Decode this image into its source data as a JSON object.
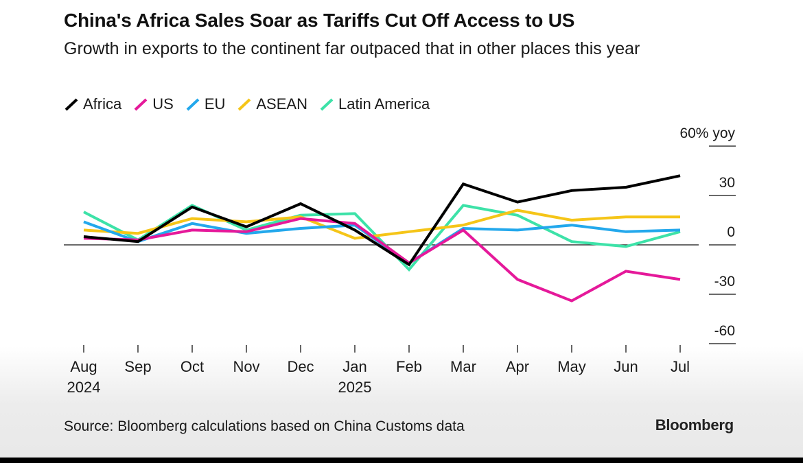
{
  "title": "China's Africa Sales Soar as Tariffs Cut Off Access to US",
  "subtitle": "Growth in exports to the continent far outpaced that in other places this year",
  "source": "Source: Bloomberg calculations based on China Customs data",
  "brand": "Bloomberg",
  "chart_data": {
    "type": "line",
    "categories": [
      "Aug 2024",
      "Sep",
      "Oct",
      "Nov",
      "Dec",
      "Jan 2025",
      "Feb",
      "Mar",
      "Apr",
      "May",
      "Jun",
      "Jul"
    ],
    "x_tick_labels": [
      {
        "line1": "Aug",
        "line2": "2024"
      },
      {
        "line1": "Sep",
        "line2": ""
      },
      {
        "line1": "Oct",
        "line2": ""
      },
      {
        "line1": "Nov",
        "line2": ""
      },
      {
        "line1": "Dec",
        "line2": ""
      },
      {
        "line1": "Jan",
        "line2": "2025"
      },
      {
        "line1": "Feb",
        "line2": ""
      },
      {
        "line1": "Mar",
        "line2": ""
      },
      {
        "line1": "Apr",
        "line2": ""
      },
      {
        "line1": "May",
        "line2": ""
      },
      {
        "line1": "Jun",
        "line2": ""
      },
      {
        "line1": "Jul",
        "line2": ""
      }
    ],
    "y_ticks": [
      {
        "value": 60,
        "label": "60% yoy"
      },
      {
        "value": 30,
        "label": "30"
      },
      {
        "value": 0,
        "label": "0"
      },
      {
        "value": -30,
        "label": "-30"
      },
      {
        "value": -60,
        "label": "-60"
      }
    ],
    "ylim": [
      -60,
      60
    ],
    "zero_line": true,
    "legend_position": "top-left",
    "series": [
      {
        "name": "Africa",
        "color": "#000000",
        "values": [
          5,
          2,
          23,
          11,
          25,
          9,
          -12,
          37,
          26,
          33,
          35,
          42
        ]
      },
      {
        "name": "US",
        "color": "#e5199a",
        "values": [
          4,
          3,
          9,
          8,
          16,
          13,
          -11,
          9,
          -21,
          -34,
          -16,
          -21
        ]
      },
      {
        "name": "EU",
        "color": "#23a8ec",
        "values": [
          14,
          2,
          13,
          7,
          10,
          12,
          -11,
          10,
          9,
          12,
          8,
          9
        ]
      },
      {
        "name": "ASEAN",
        "color": "#f5c518",
        "values": [
          9,
          7,
          16,
          14,
          17,
          4,
          8,
          12,
          21,
          15,
          17,
          17
        ]
      },
      {
        "name": "Latin America",
        "color": "#3de2a8",
        "values": [
          20,
          3,
          24,
          9,
          18,
          19,
          -15,
          24,
          18,
          2,
          -1,
          8
        ]
      }
    ]
  }
}
